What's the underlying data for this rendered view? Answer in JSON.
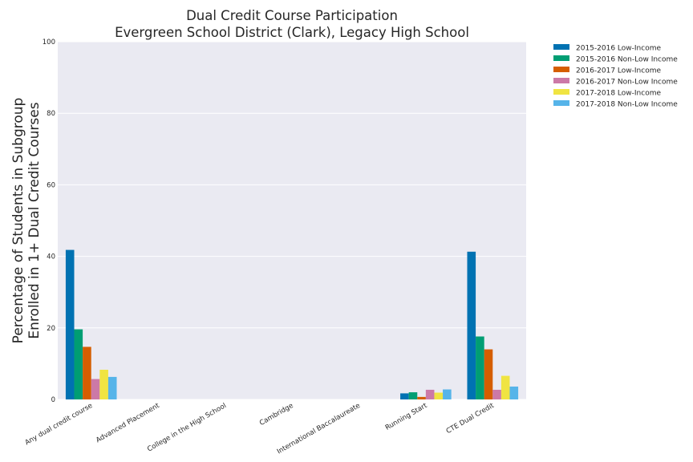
{
  "chart_data": {
    "type": "bar",
    "title": [
      "Dual Credit Course Participation",
      "Evergreen School District (Clark), Legacy High School"
    ],
    "xlabel": "",
    "ylabel": [
      "Percentage of Students in Subgroup",
      "Enrolled in 1+ Dual Credit Courses"
    ],
    "ylim": [
      0,
      100
    ],
    "yticks": [
      0,
      20,
      40,
      60,
      80,
      100
    ],
    "grid": true,
    "legend_position": "outside-top-right",
    "categories": [
      "Any dual credit course",
      "Advanced Placement",
      "College in the High School",
      "Cambridge",
      "International Baccalaureate",
      "Running Start",
      "CTE Dual Credit"
    ],
    "series": [
      {
        "name": "2015-2016 Low-Income",
        "color": "#0072b2",
        "values": [
          41.8,
          0,
          0,
          0,
          0,
          1.7,
          41.3
        ]
      },
      {
        "name": "2015-2016 Non-Low Income",
        "color": "#009e73",
        "values": [
          19.6,
          0,
          0,
          0,
          0,
          2.0,
          17.6
        ]
      },
      {
        "name": "2016-2017 Low-Income",
        "color": "#d55e00",
        "values": [
          14.7,
          0,
          0,
          0,
          0,
          0.7,
          14.0
        ]
      },
      {
        "name": "2016-2017 Non-Low Income",
        "color": "#cc79a7",
        "values": [
          5.7,
          0,
          0,
          0,
          0,
          2.7,
          2.7
        ]
      },
      {
        "name": "2017-2018 Low-Income",
        "color": "#f0e442",
        "values": [
          8.3,
          0,
          0,
          0,
          0,
          1.9,
          6.6
        ]
      },
      {
        "name": "2017-2018 Non-Low Income",
        "color": "#56b4e9",
        "values": [
          6.3,
          0,
          0,
          0,
          0,
          2.8,
          3.6
        ]
      }
    ]
  }
}
